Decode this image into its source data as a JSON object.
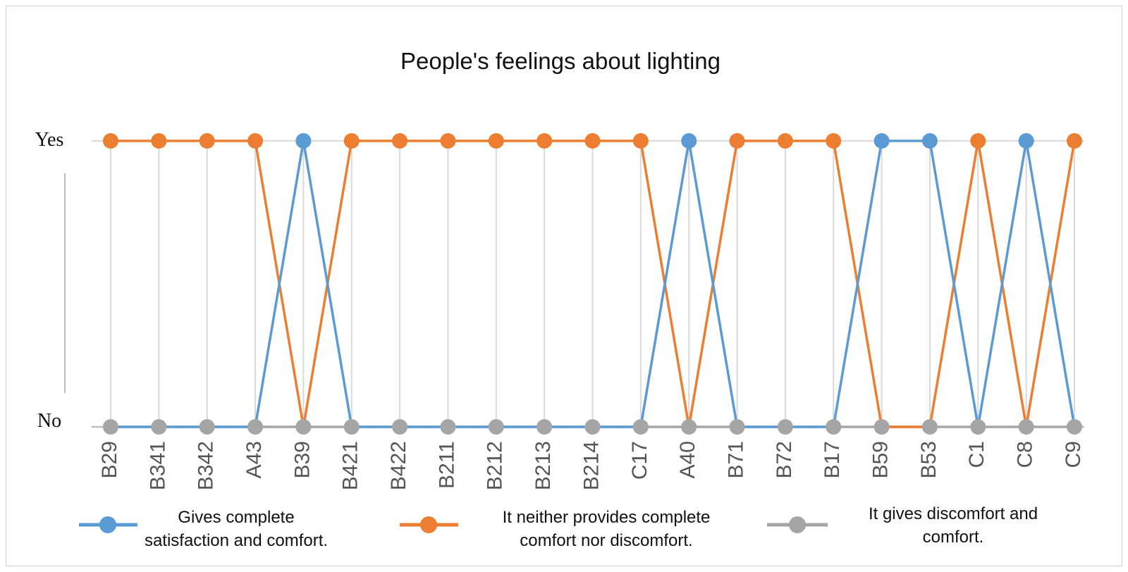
{
  "chart_data": {
    "type": "line",
    "title": "People's feelings about lighting",
    "categories": [
      "B29",
      "B341",
      "B342",
      "A43",
      "B39",
      "B421",
      "B422",
      "B211",
      "B212",
      "B213",
      "B214",
      "C17",
      "A40",
      "B71",
      "B72",
      "B17",
      "B59",
      "B53",
      "C1",
      "C8",
      "C9"
    ],
    "y_levels": [
      "No",
      "Yes"
    ],
    "ylim": [
      0,
      1
    ],
    "grid": true,
    "legend_position": "bottom",
    "series": [
      {
        "name": "Gives complete satisfaction and comfort.",
        "legend_lines": [
          "Gives complete",
          "satisfaction and comfort."
        ],
        "color": "#5b9bd5",
        "values": [
          0,
          0,
          0,
          0,
          1,
          0,
          0,
          0,
          0,
          0,
          0,
          0,
          1,
          0,
          0,
          0,
          1,
          1,
          0,
          1,
          0
        ]
      },
      {
        "name": "It neither provides complete comfort nor discomfort.",
        "legend_lines": [
          "It neither provides complete",
          "comfort nor discomfort."
        ],
        "color": "#ed7d31",
        "values": [
          1,
          1,
          1,
          1,
          0,
          1,
          1,
          1,
          1,
          1,
          1,
          1,
          0,
          1,
          1,
          1,
          0,
          0,
          1,
          0,
          1
        ]
      },
      {
        "name": "It gives discomfort and comfort.",
        "legend_lines": [
          "It gives discomfort and",
          "comfort."
        ],
        "color": "#a5a5a5",
        "values": [
          0,
          0,
          0,
          0,
          0,
          0,
          0,
          0,
          0,
          0,
          0,
          0,
          0,
          0,
          0,
          0,
          0,
          0,
          0,
          0,
          0
        ]
      }
    ]
  }
}
